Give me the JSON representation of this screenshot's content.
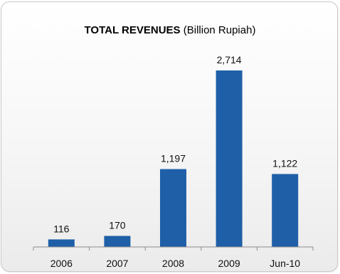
{
  "chart_data": {
    "type": "bar",
    "title": "TOTAL REVENUES",
    "subtitle": "(Billion Rupiah)",
    "categories": [
      "2006",
      "2007",
      "2008",
      "2009",
      "Jun-10"
    ],
    "values": [
      116,
      170,
      1197,
      2714,
      1122
    ],
    "value_labels": [
      "116",
      "170",
      "1,197",
      "2,714",
      "1,122"
    ],
    "xlabel": "",
    "ylabel": "",
    "ylim": [
      0,
      2714
    ],
    "grid": false,
    "legend": "none",
    "bar_color": "#1f5fa8",
    "axis_color": "#8c8c8c"
  }
}
